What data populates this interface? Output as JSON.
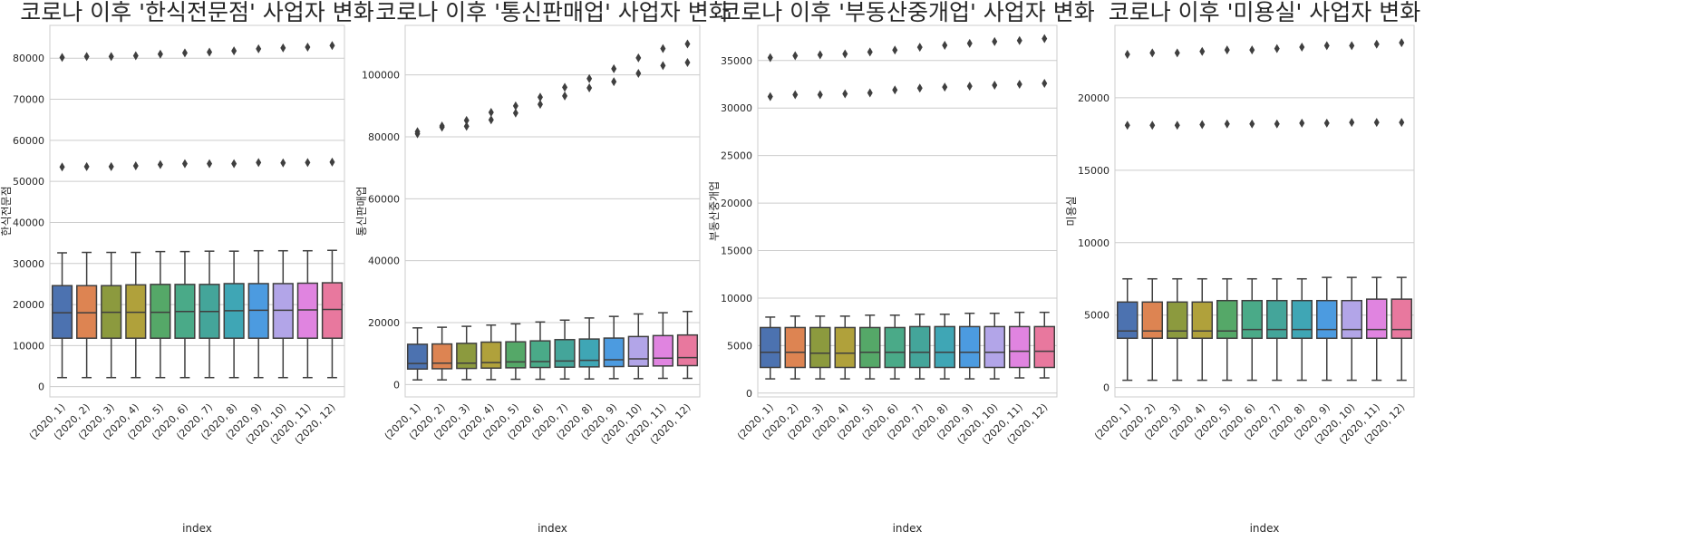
{
  "chart_data": [
    {
      "type": "box",
      "title": "코로나 이후 '한식전문점' 사업자 변화",
      "xlabel": "index",
      "ylabel": "한식전문점",
      "categories": [
        "(2020, 1)",
        "(2020, 2)",
        "(2020, 3)",
        "(2020, 4)",
        "(2020, 5)",
        "(2020, 6)",
        "(2020, 7)",
        "(2020, 8)",
        "(2020, 9)",
        "(2020, 10)",
        "(2020, 11)",
        "(2020, 12)"
      ],
      "ylim": [
        -2500,
        88000
      ],
      "yticks": [
        0,
        10000,
        20000,
        30000,
        40000,
        50000,
        60000,
        70000,
        80000
      ],
      "grid": "horizontal",
      "boxes": [
        {
          "min": 2200,
          "q1": 11800,
          "median": 18000,
          "q3": 24600,
          "max": 32600,
          "outliers": [
            53500,
            80200
          ]
        },
        {
          "min": 2200,
          "q1": 11800,
          "median": 18000,
          "q3": 24600,
          "max": 32700,
          "outliers": [
            53600,
            80400
          ]
        },
        {
          "min": 2200,
          "q1": 11800,
          "median": 18100,
          "q3": 24600,
          "max": 32700,
          "outliers": [
            53600,
            80400
          ]
        },
        {
          "min": 2200,
          "q1": 11800,
          "median": 18100,
          "q3": 24800,
          "max": 32700,
          "outliers": [
            53800,
            80600
          ]
        },
        {
          "min": 2200,
          "q1": 11800,
          "median": 18100,
          "q3": 24900,
          "max": 32900,
          "outliers": [
            54100,
            81000
          ]
        },
        {
          "min": 2200,
          "q1": 11800,
          "median": 18300,
          "q3": 24900,
          "max": 32900,
          "outliers": [
            54300,
            81300
          ]
        },
        {
          "min": 2200,
          "q1": 11800,
          "median": 18300,
          "q3": 24900,
          "max": 33000,
          "outliers": [
            54300,
            81500
          ]
        },
        {
          "min": 2200,
          "q1": 11800,
          "median": 18500,
          "q3": 25100,
          "max": 33000,
          "outliers": [
            54300,
            81800
          ]
        },
        {
          "min": 2200,
          "q1": 11800,
          "median": 18600,
          "q3": 25100,
          "max": 33100,
          "outliers": [
            54600,
            82300
          ]
        },
        {
          "min": 2200,
          "q1": 11800,
          "median": 18600,
          "q3": 25100,
          "max": 33100,
          "outliers": [
            54500,
            82500
          ]
        },
        {
          "min": 2200,
          "q1": 11800,
          "median": 18700,
          "q3": 25200,
          "max": 33100,
          "outliers": [
            54600,
            82700
          ]
        },
        {
          "min": 2200,
          "q1": 11800,
          "median": 18800,
          "q3": 25300,
          "max": 33200,
          "outliers": [
            54700,
            83100
          ]
        }
      ]
    },
    {
      "type": "box",
      "title": "코로나 이후 '통신판매업' 사업자 변화",
      "xlabel": "index",
      "ylabel": "통신판매업",
      "categories": [
        "(2020, 1)",
        "(2020, 2)",
        "(2020, 3)",
        "(2020, 4)",
        "(2020, 5)",
        "(2020, 6)",
        "(2020, 7)",
        "(2020, 8)",
        "(2020, 9)",
        "(2020, 10)",
        "(2020, 11)",
        "(2020, 12)"
      ],
      "ylim": [
        -4000,
        116000
      ],
      "yticks": [
        0,
        20000,
        40000,
        60000,
        80000,
        100000
      ],
      "grid": "horizontal",
      "boxes": [
        {
          "min": 1500,
          "q1": 5000,
          "median": 6800,
          "q3": 13000,
          "max": 18300,
          "outliers": [
            81000,
            81700
          ]
        },
        {
          "min": 1500,
          "q1": 5100,
          "median": 6900,
          "q3": 13100,
          "max": 18500,
          "outliers": [
            83100,
            83500
          ]
        },
        {
          "min": 1600,
          "q1": 5200,
          "median": 6900,
          "q3": 13300,
          "max": 18800,
          "outliers": [
            83400,
            85300
          ]
        },
        {
          "min": 1600,
          "q1": 5300,
          "median": 7100,
          "q3": 13700,
          "max": 19200,
          "outliers": [
            85500,
            87900
          ]
        },
        {
          "min": 1700,
          "q1": 5400,
          "median": 7300,
          "q3": 13800,
          "max": 19600,
          "outliers": [
            87700,
            90000
          ]
        },
        {
          "min": 1700,
          "q1": 5500,
          "median": 7400,
          "q3": 14100,
          "max": 20200,
          "outliers": [
            90500,
            92800
          ]
        },
        {
          "min": 1800,
          "q1": 5600,
          "median": 7600,
          "q3": 14500,
          "max": 20800,
          "outliers": [
            93200,
            96000
          ]
        },
        {
          "min": 1800,
          "q1": 5700,
          "median": 7800,
          "q3": 14700,
          "max": 21500,
          "outliers": [
            95800,
            98800
          ]
        },
        {
          "min": 1900,
          "q1": 5800,
          "median": 8000,
          "q3": 15000,
          "max": 22000,
          "outliers": [
            97800,
            102000
          ]
        },
        {
          "min": 1900,
          "q1": 5900,
          "median": 8300,
          "q3": 15500,
          "max": 22800,
          "outliers": [
            100500,
            105500
          ]
        },
        {
          "min": 2000,
          "q1": 6000,
          "median": 8500,
          "q3": 15800,
          "max": 23200,
          "outliers": [
            103000,
            108500
          ]
        },
        {
          "min": 2000,
          "q1": 6100,
          "median": 8700,
          "q3": 16000,
          "max": 23600,
          "outliers": [
            104000,
            110000
          ]
        }
      ]
    },
    {
      "type": "box",
      "title": "코로나 이후 '부동산중개업' 사업자 변화",
      "xlabel": "index",
      "ylabel": "부동산중개업",
      "categories": [
        "(2020, 1)",
        "(2020, 2)",
        "(2020, 3)",
        "(2020, 4)",
        "(2020, 5)",
        "(2020, 6)",
        "(2020, 7)",
        "(2020, 8)",
        "(2020, 9)",
        "(2020, 10)",
        "(2020, 11)",
        "(2020, 12)"
      ],
      "ylim": [
        -400,
        38700
      ],
      "yticks": [
        0,
        5000,
        10000,
        15000,
        20000,
        25000,
        30000,
        35000
      ],
      "grid": "horizontal",
      "boxes": [
        {
          "min": 1500,
          "q1": 2700,
          "median": 4300,
          "q3": 6900,
          "max": 8000,
          "outliers": [
            31200,
            35300
          ]
        },
        {
          "min": 1500,
          "q1": 2700,
          "median": 4300,
          "q3": 6900,
          "max": 8100,
          "outliers": [
            31400,
            35500
          ]
        },
        {
          "min": 1500,
          "q1": 2700,
          "median": 4200,
          "q3": 6900,
          "max": 8100,
          "outliers": [
            31400,
            35600
          ]
        },
        {
          "min": 1500,
          "q1": 2700,
          "median": 4200,
          "q3": 6900,
          "max": 8100,
          "outliers": [
            31500,
            35700
          ]
        },
        {
          "min": 1500,
          "q1": 2700,
          "median": 4300,
          "q3": 6900,
          "max": 8200,
          "outliers": [
            31600,
            35900
          ]
        },
        {
          "min": 1500,
          "q1": 2700,
          "median": 4300,
          "q3": 6900,
          "max": 8200,
          "outliers": [
            31900,
            36100
          ]
        },
        {
          "min": 1500,
          "q1": 2700,
          "median": 4300,
          "q3": 7000,
          "max": 8300,
          "outliers": [
            32100,
            36400
          ]
        },
        {
          "min": 1500,
          "q1": 2700,
          "median": 4300,
          "q3": 7000,
          "max": 8300,
          "outliers": [
            32200,
            36600
          ]
        },
        {
          "min": 1500,
          "q1": 2700,
          "median": 4300,
          "q3": 7000,
          "max": 8400,
          "outliers": [
            32300,
            36800
          ]
        },
        {
          "min": 1500,
          "q1": 2700,
          "median": 4300,
          "q3": 7000,
          "max": 8400,
          "outliers": [
            32400,
            37000
          ]
        },
        {
          "min": 1600,
          "q1": 2700,
          "median": 4400,
          "q3": 7000,
          "max": 8500,
          "outliers": [
            32500,
            37100
          ]
        },
        {
          "min": 1600,
          "q1": 2700,
          "median": 4400,
          "q3": 7000,
          "max": 8500,
          "outliers": [
            32600,
            37300
          ]
        }
      ]
    },
    {
      "type": "box",
      "title": "코로나 이후 '미용실' 사업자 변화",
      "xlabel": "index",
      "ylabel": "미용실",
      "categories": [
        "(2020, 1)",
        "(2020, 2)",
        "(2020, 3)",
        "(2020, 4)",
        "(2020, 5)",
        "(2020, 6)",
        "(2020, 7)",
        "(2020, 8)",
        "(2020, 9)",
        "(2020, 10)",
        "(2020, 11)",
        "(2020, 12)"
      ],
      "ylim": [
        -650,
        25000
      ],
      "yticks": [
        0,
        5000,
        10000,
        15000,
        20000
      ],
      "grid": "horizontal",
      "boxes": [
        {
          "min": 500,
          "q1": 3400,
          "median": 3900,
          "q3": 5900,
          "max": 7500,
          "outliers": [
            18100,
            23000
          ]
        },
        {
          "min": 500,
          "q1": 3400,
          "median": 3900,
          "q3": 5900,
          "max": 7500,
          "outliers": [
            18100,
            23100
          ]
        },
        {
          "min": 500,
          "q1": 3400,
          "median": 3900,
          "q3": 5900,
          "max": 7500,
          "outliers": [
            18100,
            23100
          ]
        },
        {
          "min": 500,
          "q1": 3400,
          "median": 3900,
          "q3": 5900,
          "max": 7500,
          "outliers": [
            18150,
            23200
          ]
        },
        {
          "min": 500,
          "q1": 3400,
          "median": 3900,
          "q3": 6000,
          "max": 7500,
          "outliers": [
            18200,
            23300
          ]
        },
        {
          "min": 500,
          "q1": 3400,
          "median": 4000,
          "q3": 6000,
          "max": 7500,
          "outliers": [
            18200,
            23300
          ]
        },
        {
          "min": 500,
          "q1": 3400,
          "median": 4000,
          "q3": 6000,
          "max": 7500,
          "outliers": [
            18200,
            23400
          ]
        },
        {
          "min": 500,
          "q1": 3400,
          "median": 4000,
          "q3": 6000,
          "max": 7500,
          "outliers": [
            18250,
            23500
          ]
        },
        {
          "min": 500,
          "q1": 3400,
          "median": 4000,
          "q3": 6000,
          "max": 7600,
          "outliers": [
            18250,
            23600
          ]
        },
        {
          "min": 500,
          "q1": 3400,
          "median": 4000,
          "q3": 6000,
          "max": 7600,
          "outliers": [
            18300,
            23600
          ]
        },
        {
          "min": 500,
          "q1": 3400,
          "median": 4000,
          "q3": 6100,
          "max": 7600,
          "outliers": [
            18300,
            23700
          ]
        },
        {
          "min": 500,
          "q1": 3400,
          "median": 4000,
          "q3": 6100,
          "max": 7600,
          "outliers": [
            18300,
            23800
          ]
        }
      ]
    }
  ],
  "palette": [
    "#3274a1",
    "#e1812c",
    "#3a923a",
    "#c03d3e",
    "#9372b2",
    "#845b53",
    "#d684bd",
    "#7f7f7f",
    "#a9aa35",
    "#2eb0be",
    "#a8c6e5",
    "#f8bf84"
  ],
  "box_colors": [
    "#4878d0",
    "#ee854a",
    "#6acc64",
    "#d65f5f",
    "#956cb4",
    "#8c613c",
    "#dc7ec0",
    "#797979",
    "#d5bb67",
    "#82c6e2",
    "#4878d0",
    "#ee854a"
  ]
}
